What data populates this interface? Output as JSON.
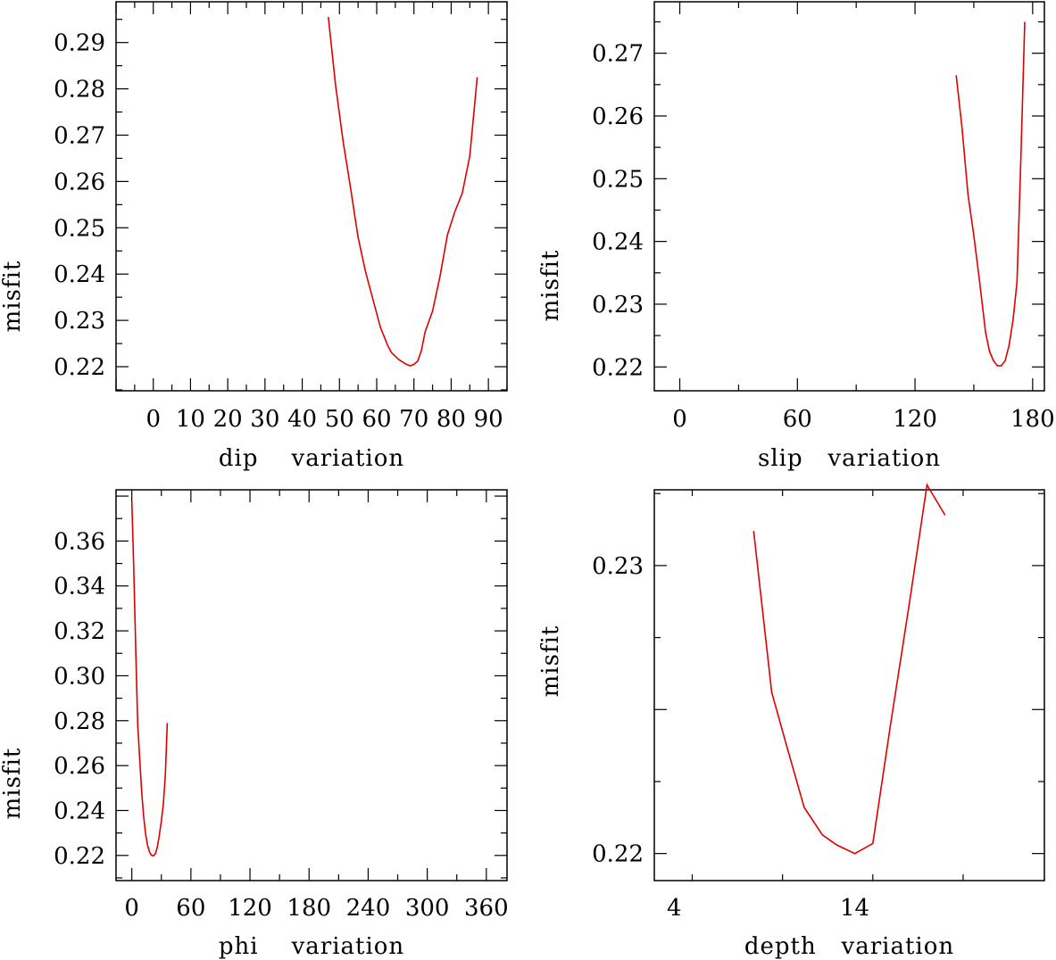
{
  "chart_data": [
    {
      "type": "line",
      "xlabel": "dip    variation",
      "ylabel": "misfit",
      "xlim": [
        -10,
        95
      ],
      "ylim": [
        0.2148,
        0.2988
      ],
      "x_ticks": [
        0,
        10,
        20,
        30,
        40,
        50,
        60,
        70,
        80,
        90
      ],
      "x_tick_labels": [
        "0",
        "10",
        "20",
        "30",
        "40",
        "50",
        "60",
        "70",
        "80",
        "90"
      ],
      "y_ticks": [
        0.22,
        0.23,
        0.24,
        0.25,
        0.26,
        0.27,
        0.28,
        0.29
      ],
      "y_tick_labels": [
        "0.22",
        "0.23",
        "0.24",
        "0.25",
        "0.26",
        "0.27",
        "0.28",
        "0.29"
      ],
      "series": [
        {
          "color": "#e00000",
          "x": [
            47,
            49,
            51,
            53,
            55,
            57,
            59,
            61,
            63,
            64,
            66,
            68,
            69,
            70,
            71,
            72,
            73,
            75,
            77,
            79,
            81,
            83,
            85,
            87
          ],
          "y": [
            0.2955,
            0.2805,
            0.2685,
            0.2585,
            0.248,
            0.2405,
            0.2345,
            0.2285,
            0.2245,
            0.223,
            0.2215,
            0.2205,
            0.2202,
            0.2205,
            0.2212,
            0.2235,
            0.2275,
            0.232,
            0.2395,
            0.2485,
            0.2535,
            0.2575,
            0.2655,
            0.2825
          ]
        }
      ]
    },
    {
      "type": "line",
      "xlabel": "slip   variation",
      "ylabel": "misfit",
      "xlim": [
        -13,
        186
      ],
      "ylim": [
        0.2162,
        0.2782
      ],
      "x_ticks": [
        0,
        60,
        120,
        180
      ],
      "x_tick_labels": [
        "0",
        "60",
        "120",
        "180"
      ],
      "y_ticks": [
        0.22,
        0.23,
        0.24,
        0.25,
        0.26,
        0.27
      ],
      "y_tick_labels": [
        "0.22",
        "0.23",
        "0.24",
        "0.25",
        "0.26",
        "0.27"
      ],
      "series": [
        {
          "color": "#e00000",
          "x": [
            141,
            144,
            147,
            150,
            153,
            156,
            158,
            160,
            162,
            164,
            166,
            168,
            170,
            172,
            174,
            176
          ],
          "y": [
            0.2665,
            0.258,
            0.2475,
            0.241,
            0.2335,
            0.2255,
            0.2225,
            0.221,
            0.2202,
            0.2202,
            0.221,
            0.2235,
            0.2275,
            0.2335,
            0.253,
            0.275
          ]
        }
      ]
    },
    {
      "type": "line",
      "xlabel": "phi    variation",
      "ylabel": "misfit",
      "xlim": [
        -16,
        381
      ],
      "ylim": [
        0.2088,
        0.3828
      ],
      "x_ticks": [
        0,
        60,
        120,
        180,
        240,
        300,
        360
      ],
      "x_tick_labels": [
        "0",
        "60",
        "120",
        "180",
        "240",
        "300",
        "360"
      ],
      "y_ticks": [
        0.22,
        0.24,
        0.26,
        0.28,
        0.3,
        0.32,
        0.34,
        0.36
      ],
      "y_tick_labels": [
        "0.22",
        "0.24",
        "0.26",
        "0.28",
        "0.30",
        "0.32",
        "0.34",
        "0.36"
      ],
      "series": [
        {
          "color": "#e00000",
          "x": [
            0,
            2,
            4,
            6,
            8,
            10,
            12,
            14,
            16,
            18,
            20,
            22,
            24,
            26,
            28,
            30,
            32,
            34,
            36
          ],
          "y": [
            0.3775,
            0.347,
            0.311,
            0.278,
            0.263,
            0.2485,
            0.2375,
            0.2295,
            0.2245,
            0.2215,
            0.2201,
            0.2198,
            0.2208,
            0.2238,
            0.229,
            0.2355,
            0.243,
            0.2555,
            0.279
          ]
        }
      ]
    },
    {
      "type": "line",
      "xlabel": "depth   variation",
      "ylabel": "misfit",
      "xlim": [
        2.9,
        24.5
      ],
      "ylim": [
        0.21906,
        0.23263
      ],
      "x_ticks": [
        4,
        14
      ],
      "x_tick_labels": [
        "4",
        "14"
      ],
      "y_ticks": [
        0.22,
        0.225,
        0.23
      ],
      "y_tick_labels": [
        "0.22",
        "",
        "0.23"
      ],
      "series": [
        {
          "color": "#e00000",
          "x": [
            8.4,
            9.4,
            10.2,
            11.2,
            12.2,
            13.0,
            14.0,
            15.0,
            16.0,
            17.0,
            18.0,
            19.0
          ],
          "y": [
            0.2312,
            0.2256,
            0.2238,
            0.2216,
            0.22065,
            0.2203,
            0.22,
            0.22035,
            0.22455,
            0.2286,
            0.2328,
            0.23175
          ]
        }
      ]
    }
  ]
}
